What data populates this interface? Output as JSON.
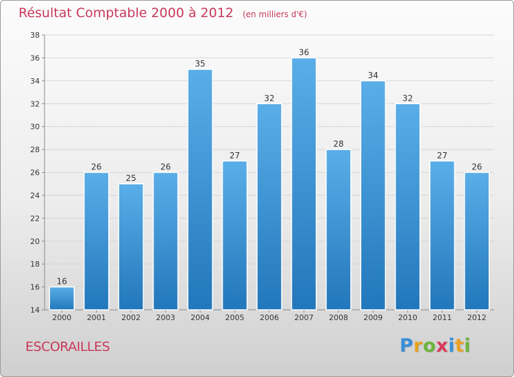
{
  "header": {
    "title": "Résultat Comptable 2000 à 2012",
    "subtitle": "(en milliers d'€)"
  },
  "footer": {
    "commune": "ESCORAILLES",
    "brand_letters": [
      "P",
      "r",
      "o",
      "x",
      "i",
      "t",
      "i"
    ],
    "brand_colors": [
      "#3a8fd8",
      "#e8a21f",
      "#6cb43c",
      "#d83a5a",
      "#3a8fd8",
      "#e8a21f",
      "#6cb43c"
    ]
  },
  "chart_data": {
    "type": "bar",
    "title": "Résultat Comptable 2000 à 2012",
    "subtitle": "(en milliers d'€)",
    "xlabel": "",
    "ylabel": "",
    "categories": [
      "2000",
      "2001",
      "2002",
      "2003",
      "2004",
      "2005",
      "2006",
      "2007",
      "2008",
      "2009",
      "2010",
      "2011",
      "2012"
    ],
    "values": [
      16,
      26,
      25,
      26,
      35,
      27,
      32,
      36,
      28,
      34,
      32,
      27,
      26
    ],
    "ylim": [
      14,
      38
    ],
    "yticks": [
      14,
      16,
      18,
      20,
      22,
      24,
      26,
      28,
      30,
      32,
      34,
      36,
      38
    ],
    "grid": true,
    "bar_color_top": "#5aaee8",
    "bar_color_bottom": "#2277bb"
  }
}
